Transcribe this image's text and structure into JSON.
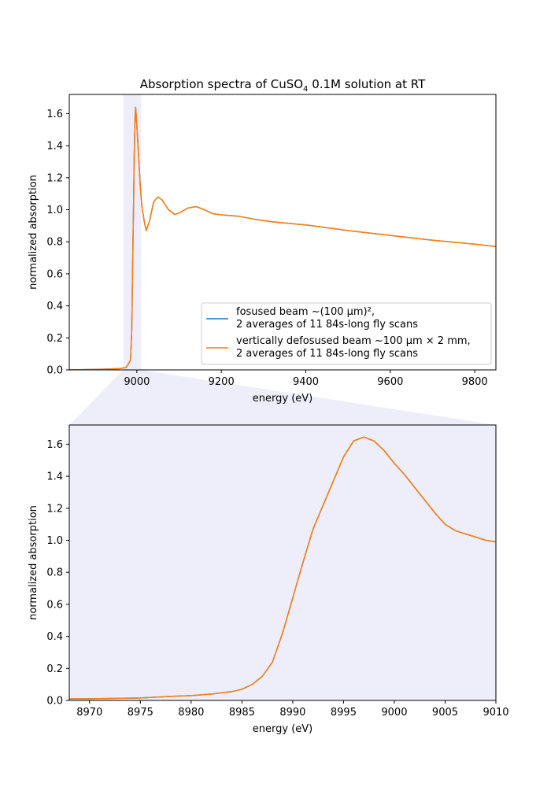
{
  "chart_data": [
    {
      "type": "line",
      "title": "Absorption spectra of CuSO",
      "title_subscript": "4",
      "title_suffix": " 0.1M solution at RT",
      "xlabel": "energy (eV)",
      "ylabel": "normalized absorption",
      "xlim": [
        8840,
        9850
      ],
      "ylim": [
        0,
        1.72
      ],
      "xticks": [
        "9000",
        "9200",
        "9400",
        "9600",
        "9800"
      ],
      "yticks": [
        "0.0",
        "0.2",
        "0.4",
        "0.6",
        "0.8",
        "1.0",
        "1.2",
        "1.4",
        "1.6"
      ],
      "highlight_span": [
        8968,
        9010
      ],
      "legend_position": "lower right",
      "series": [
        {
          "name_line1": "fosused beam ~(100 µm)²,",
          "name_line2": "2 averages of 11 84s-long fly scans",
          "color": "#1f77b4",
          "x": [
            8840,
            8900,
            8960,
            8975,
            8985,
            8988,
            8990,
            8992,
            8994,
            8996,
            8997,
            8999,
            9002,
            9005,
            9008,
            9012,
            9018,
            9022,
            9030,
            9040,
            9050,
            9060,
            9075,
            9090,
            9100,
            9120,
            9140,
            9160,
            9180,
            9200,
            9240,
            9280,
            9320,
            9400,
            9500,
            9600,
            9700,
            9800,
            9850
          ],
          "y": [
            0.0,
            0.003,
            0.008,
            0.015,
            0.06,
            0.25,
            0.65,
            1.0,
            1.35,
            1.6,
            1.64,
            1.57,
            1.44,
            1.3,
            1.15,
            1.02,
            0.92,
            0.87,
            0.93,
            1.05,
            1.08,
            1.06,
            1.0,
            0.97,
            0.98,
            1.01,
            1.02,
            1.0,
            0.975,
            0.968,
            0.96,
            0.94,
            0.925,
            0.905,
            0.87,
            0.84,
            0.81,
            0.785,
            0.77
          ]
        },
        {
          "name_line1": "vertically defosused beam ~100 µm × 2 mm,",
          "name_line2": "2 averages of 11 84s-long fly scans",
          "color": "#ff7f0e",
          "x": [
            8840,
            8900,
            8960,
            8975,
            8985,
            8988,
            8990,
            8992,
            8994,
            8996,
            8997,
            8999,
            9002,
            9005,
            9008,
            9012,
            9018,
            9022,
            9030,
            9040,
            9050,
            9060,
            9075,
            9090,
            9100,
            9120,
            9140,
            9160,
            9180,
            9200,
            9240,
            9280,
            9320,
            9400,
            9500,
            9600,
            9700,
            9800,
            9850
          ],
          "y": [
            0.0,
            0.003,
            0.008,
            0.015,
            0.06,
            0.25,
            0.65,
            1.0,
            1.35,
            1.6,
            1.64,
            1.57,
            1.44,
            1.3,
            1.15,
            1.02,
            0.92,
            0.87,
            0.93,
            1.05,
            1.08,
            1.06,
            1.0,
            0.97,
            0.98,
            1.01,
            1.02,
            1.0,
            0.975,
            0.968,
            0.96,
            0.94,
            0.925,
            0.905,
            0.87,
            0.84,
            0.81,
            0.785,
            0.77
          ]
        }
      ]
    },
    {
      "type": "line",
      "xlabel": "energy (eV)",
      "ylabel": "normalized absorption",
      "xlim": [
        8968,
        9010
      ],
      "ylim": [
        0,
        1.72
      ],
      "xticks": [
        "8970",
        "8975",
        "8980",
        "8985",
        "8990",
        "8995",
        "9000",
        "9005",
        "9010"
      ],
      "yticks": [
        "0.0",
        "0.2",
        "0.4",
        "0.6",
        "0.8",
        "1.0",
        "1.2",
        "1.4",
        "1.6"
      ],
      "background": "#eeeefb",
      "series": [
        {
          "color": "#1f77b4",
          "x": [
            8968,
            8970,
            8975,
            8978,
            8980,
            8982,
            8984,
            8985,
            8986,
            8987,
            8988,
            8989,
            8990,
            8991,
            8992,
            8993,
            8994,
            8995,
            8996,
            8997,
            8998,
            8999,
            9000,
            9001,
            9002,
            9003,
            9004,
            9005,
            9006,
            9007,
            9008,
            9009,
            9010
          ],
          "y": [
            0.01,
            0.01,
            0.015,
            0.025,
            0.03,
            0.04,
            0.055,
            0.07,
            0.1,
            0.15,
            0.24,
            0.42,
            0.64,
            0.86,
            1.07,
            1.22,
            1.37,
            1.52,
            1.62,
            1.645,
            1.62,
            1.56,
            1.48,
            1.41,
            1.33,
            1.25,
            1.17,
            1.1,
            1.06,
            1.04,
            1.02,
            1.0,
            0.99
          ]
        },
        {
          "color": "#ff7f0e",
          "x": [
            8968,
            8970,
            8975,
            8978,
            8980,
            8982,
            8984,
            8985,
            8986,
            8987,
            8988,
            8989,
            8990,
            8991,
            8992,
            8993,
            8994,
            8995,
            8996,
            8997,
            8998,
            8999,
            9000,
            9001,
            9002,
            9003,
            9004,
            9005,
            9006,
            9007,
            9008,
            9009,
            9010
          ],
          "y": [
            0.01,
            0.01,
            0.015,
            0.025,
            0.03,
            0.04,
            0.055,
            0.07,
            0.1,
            0.15,
            0.24,
            0.42,
            0.64,
            0.86,
            1.07,
            1.22,
            1.37,
            1.52,
            1.62,
            1.645,
            1.62,
            1.56,
            1.48,
            1.41,
            1.33,
            1.25,
            1.17,
            1.1,
            1.06,
            1.04,
            1.02,
            1.0,
            0.99
          ]
        }
      ]
    }
  ]
}
